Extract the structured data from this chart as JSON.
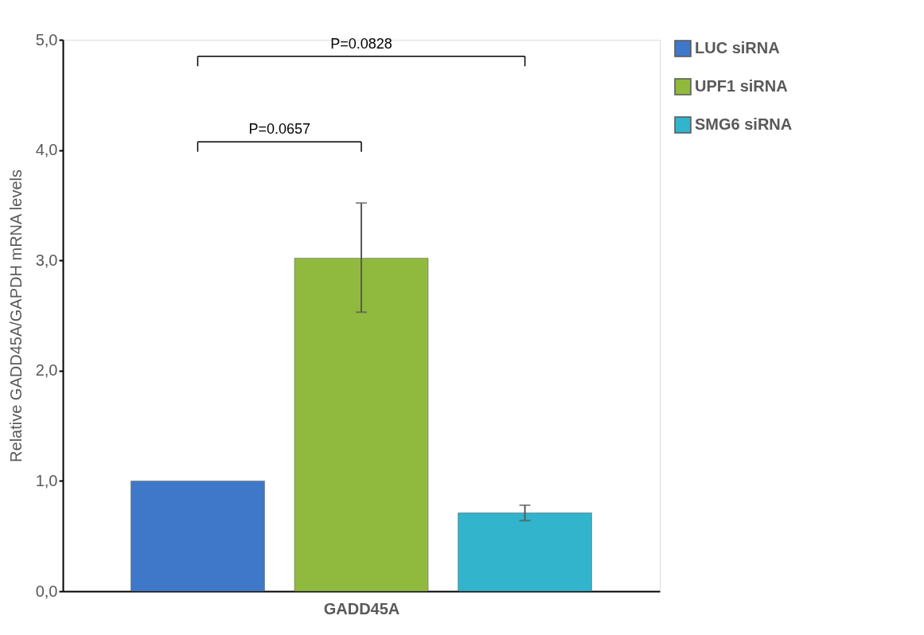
{
  "chart_data": {
    "type": "bar",
    "ylabel": "Relative GADD45A/GAPDH mRNA levels",
    "categories": [
      "GADD45A"
    ],
    "series": [
      {
        "name": "LUC siRNA",
        "color": "#3f78c8",
        "values": [
          1.0
        ]
      },
      {
        "name": "UPF1 siRNA",
        "color": "#8fba3e",
        "values": [
          3.02
        ],
        "errors": [
          [
            2.53,
            3.52
          ]
        ]
      },
      {
        "name": "SMG6 siRNA",
        "color": "#31b4cc",
        "values": [
          0.71
        ],
        "errors": [
          [
            0.64,
            0.78
          ]
        ]
      }
    ],
    "ylim": [
      0,
      5
    ],
    "yticks": [
      {
        "value": 0,
        "label": "0,0"
      },
      {
        "value": 1,
        "label": "1,0"
      },
      {
        "value": 2,
        "label": "2,0"
      },
      {
        "value": 3,
        "label": "3,0"
      },
      {
        "value": 4,
        "label": "4,0"
      },
      {
        "value": 5,
        "label": "5,0"
      }
    ],
    "annotations": [
      "P=0.0657",
      "P=0.0828"
    ],
    "legend": "right",
    "grid": false
  }
}
